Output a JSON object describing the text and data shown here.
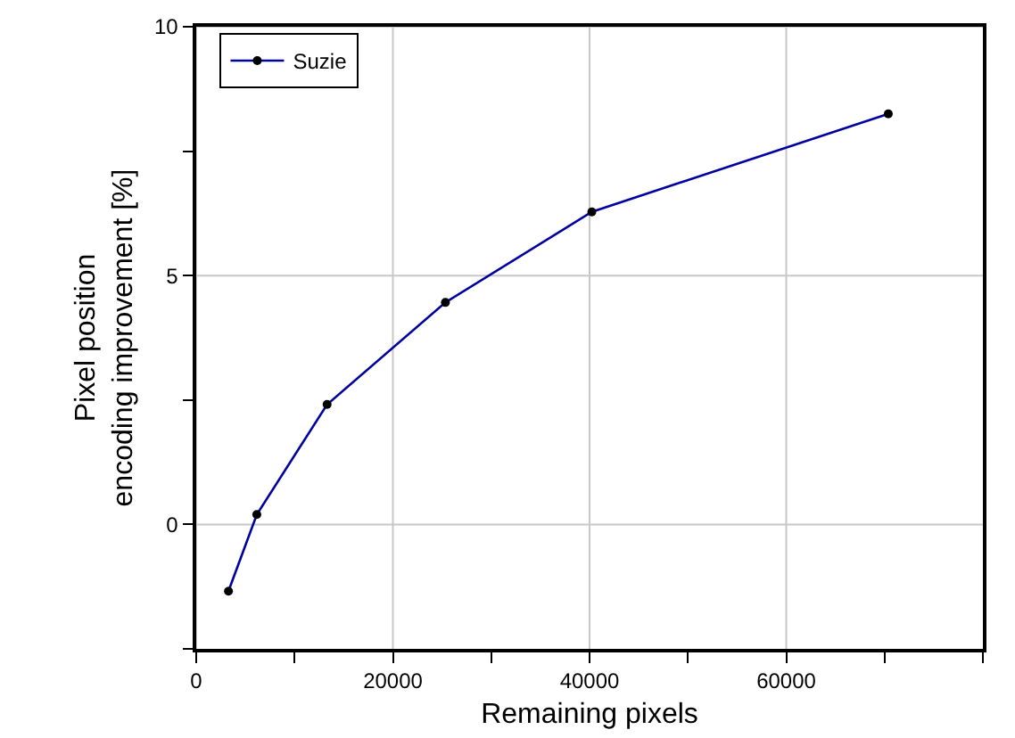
{
  "chart_data": {
    "type": "line",
    "xlabel": "Remaining pixels",
    "ylabel": "Pixel position\nencoding improvement [%]",
    "x": [
      3280,
      6160,
      13310,
      25340,
      40230,
      70380
    ],
    "series": [
      {
        "name": "Suzie",
        "color": "#0000a0",
        "values": [
          -1.34,
          0.2,
          2.41,
          4.46,
          6.28,
          8.25
        ]
      }
    ],
    "xlim": [
      0,
      80000
    ],
    "xticks": [
      0,
      {
        "value": 10000,
        "label": null
      },
      20000,
      {
        "value": 30000,
        "label": null
      },
      40000,
      {
        "value": 50000,
        "label": null
      },
      60000,
      {
        "value": 70000,
        "label": null
      },
      {
        "value": 80000,
        "label": null
      }
    ],
    "ylim": [
      -2.5,
      10
    ],
    "yticks": [
      {
        "value": -2.5,
        "label": null
      },
      0,
      {
        "value": 2.5,
        "label": null
      },
      5,
      {
        "value": 7.5,
        "label": null
      },
      10
    ],
    "grid": true,
    "legend": "top left",
    "marker": "circle",
    "line_style": "solid"
  }
}
